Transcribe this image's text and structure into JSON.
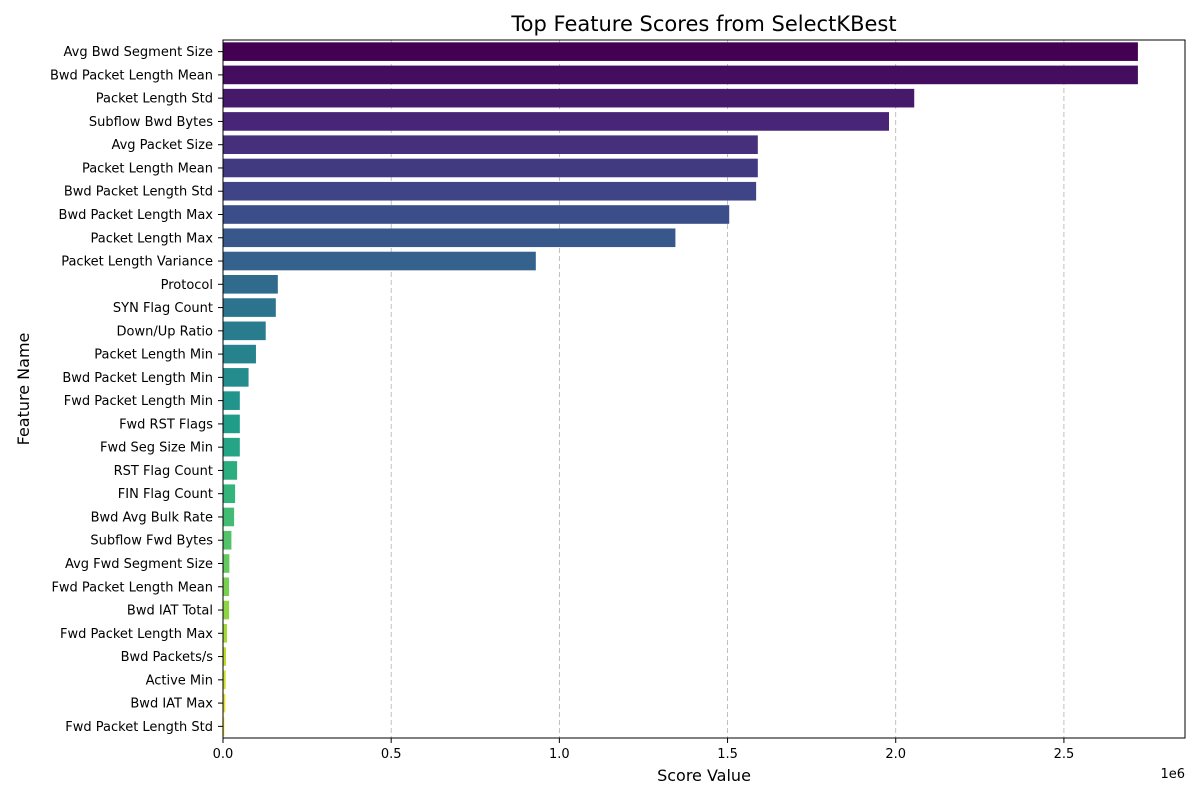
{
  "chart_data": {
    "type": "bar",
    "orientation": "horizontal",
    "title": "Top Feature Scores from SelectKBest",
    "xlabel": "Score Value",
    "ylabel": "Feature Name",
    "x_scale_label": "1e6",
    "xlim": [
      0,
      2.86
    ],
    "x_ticks": [
      0.0,
      0.5,
      1.0,
      1.5,
      2.0,
      2.5
    ],
    "x_tick_labels": [
      "0.0",
      "0.5",
      "1.0",
      "1.5",
      "2.0",
      "2.5"
    ],
    "grid": "x-dashed",
    "palette": "viridis",
    "categories": [
      "Avg Bwd Segment Size",
      "Bwd Packet Length Mean",
      "Packet Length Std",
      "Subflow Bwd Bytes",
      "Avg Packet Size",
      "Packet Length Mean",
      "Bwd Packet Length Std",
      "Bwd Packet Length Max",
      "Packet Length Max",
      "Packet Length Variance",
      "Protocol",
      "SYN Flag Count",
      "Down/Up Ratio",
      "Packet Length Min",
      "Bwd Packet Length Min",
      "Fwd Packet Length Min",
      "Fwd RST Flags",
      "Fwd Seg Size Min",
      "RST Flag Count",
      "FIN Flag Count",
      "Bwd Avg Bulk Rate",
      "Subflow Fwd Bytes",
      "Avg Fwd Segment Size",
      "Fwd Packet Length Mean",
      "Bwd IAT Total",
      "Fwd Packet Length Max",
      "Bwd Packets/s",
      "Active Min",
      "Bwd IAT Max",
      "Fwd Packet Length Std"
    ],
    "values": [
      2.72,
      2.72,
      2.055,
      1.98,
      1.59,
      1.59,
      1.585,
      1.505,
      1.345,
      0.93,
      0.163,
      0.157,
      0.127,
      0.098,
      0.076,
      0.05,
      0.05,
      0.05,
      0.042,
      0.036,
      0.033,
      0.025,
      0.019,
      0.018,
      0.018,
      0.012,
      0.009,
      0.008,
      0.007,
      0.004
    ]
  }
}
